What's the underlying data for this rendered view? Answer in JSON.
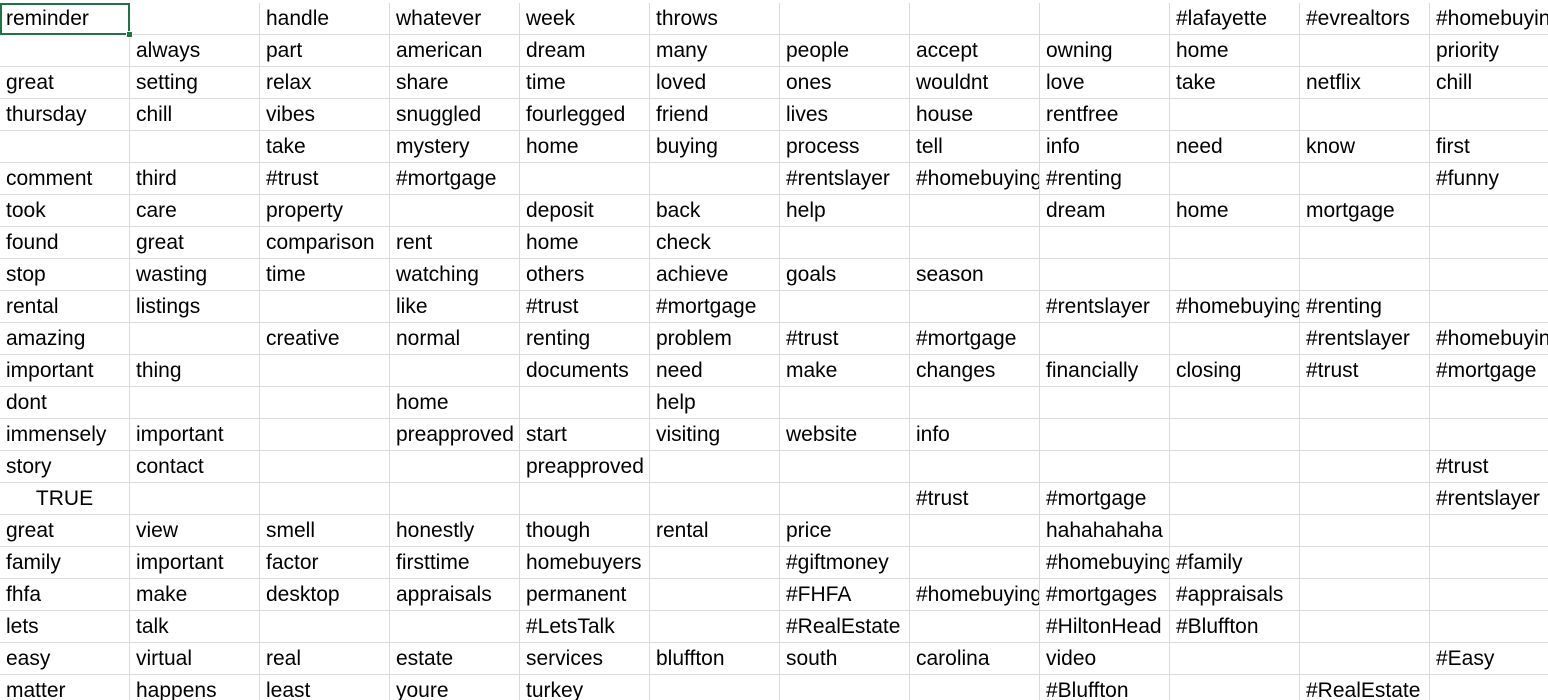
{
  "sheet": {
    "selected_cell": "A1",
    "rows": [
      [
        "reminder",
        "",
        "handle",
        "whatever",
        "week",
        "throws",
        "",
        "",
        "",
        "#lafayette",
        "#evrealtors",
        "#homebuying"
      ],
      [
        "",
        "always",
        "part",
        "american",
        "dream",
        "many",
        "people",
        "accept",
        "owning",
        "home",
        "",
        "priority"
      ],
      [
        "great",
        "setting",
        "relax",
        "share",
        "time",
        "loved",
        "ones",
        "wouldnt",
        "love",
        "take",
        "netflix",
        "chill"
      ],
      [
        "thursday",
        "chill",
        "vibes",
        "snuggled",
        "fourlegged",
        "friend",
        "lives",
        "house",
        "rentfree",
        "",
        "",
        ""
      ],
      [
        "",
        "",
        "take",
        "mystery",
        "home",
        "buying",
        "process",
        "tell",
        "info",
        "need",
        "know",
        "first"
      ],
      [
        "comment",
        "third",
        "#trust",
        "#mortgage",
        "",
        "",
        "#rentslayer",
        "#homebuying",
        "#renting",
        "",
        "",
        "#funny"
      ],
      [
        "took",
        "care",
        "property",
        "",
        "deposit",
        "back",
        "help",
        "",
        "dream",
        "home",
        "mortgage",
        ""
      ],
      [
        "found",
        "great",
        "comparison",
        "rent",
        "home",
        "check",
        "",
        "",
        "",
        "",
        "",
        ""
      ],
      [
        "stop",
        "wasting",
        "time",
        "watching",
        "others",
        "achieve",
        "goals",
        "season",
        "",
        "",
        "",
        ""
      ],
      [
        "rental",
        "listings",
        "",
        "like",
        "#trust",
        "#mortgage",
        "",
        "",
        "#rentslayer",
        "#homebuying",
        "#renting",
        ""
      ],
      [
        "amazing",
        "",
        "creative",
        "normal",
        "renting",
        "problem",
        "#trust",
        "#mortgage",
        "",
        "",
        "#rentslayer",
        "#homebuying"
      ],
      [
        "important",
        "thing",
        "",
        "",
        "documents",
        "need",
        "make",
        "changes",
        "financially",
        "closing",
        "#trust",
        "#mortgage"
      ],
      [
        "dont",
        "",
        "",
        "home",
        "",
        "help",
        "",
        "",
        "",
        "",
        "",
        ""
      ],
      [
        "immensely",
        "important",
        "",
        "preapproved",
        "start",
        "visiting",
        "website",
        "info",
        "",
        "",
        "",
        ""
      ],
      [
        "story",
        "contact",
        "",
        "",
        "preapproved",
        "",
        "",
        "",
        "",
        "",
        "",
        "#trust"
      ],
      [
        "TRUE",
        "",
        "",
        "",
        "",
        "",
        "",
        "#trust",
        "#mortgage",
        "",
        "",
        "#rentslayer"
      ],
      [
        "great",
        "view",
        "smell",
        "honestly",
        "though",
        "rental",
        "price",
        "",
        "hahahahaha",
        "",
        "",
        ""
      ],
      [
        "family",
        "important",
        "factor",
        "firsttime",
        "homebuyers",
        "",
        "#giftmoney",
        "",
        "#homebuying",
        "#family",
        "",
        ""
      ],
      [
        "fhfa",
        "make",
        "desktop",
        "appraisals",
        "permanent",
        "",
        "#FHFA",
        "#homebuying",
        "#mortgages",
        "#appraisals",
        "",
        ""
      ],
      [
        "lets",
        "talk",
        "",
        "",
        "#LetsTalk",
        "",
        "#RealEstate",
        "",
        "#HiltonHead",
        "#Bluffton",
        "",
        ""
      ],
      [
        "easy",
        "virtual",
        "real",
        "estate",
        "services",
        "bluffton",
        "south",
        "carolina",
        "video",
        "",
        "",
        "#Easy"
      ],
      [
        "matter",
        "happens",
        "least",
        "youre",
        "turkey",
        "",
        "",
        "",
        "#Bluffton",
        "",
        "#RealEstate",
        ""
      ]
    ]
  }
}
